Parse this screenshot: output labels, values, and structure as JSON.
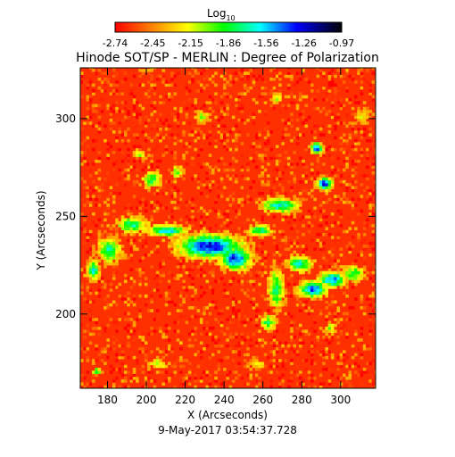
{
  "chart_data": {
    "type": "heatmap",
    "title": "Hinode SOT/SP - MERLIN : Degree of Polarization",
    "subtitle": "9-May-2017 03:54:37.728",
    "xlabel": "X (Arcseconds)",
    "ylabel": "Y (Arcseconds)",
    "xlim": [
      166,
      318
    ],
    "ylim": [
      162,
      326
    ],
    "x_ticks": [
      180,
      200,
      220,
      240,
      260,
      280,
      300
    ],
    "y_ticks": [
      200,
      250,
      300
    ],
    "colorbar": {
      "label_base": "Log",
      "label_sub": "10",
      "range": [
        -2.74,
        -0.97
      ],
      "ticks": [
        "-2.74",
        "-2.45",
        "-2.15",
        "-1.86",
        "-1.56",
        "-1.26",
        "-0.97"
      ],
      "colormap": [
        "#ff0000",
        "#ff8000",
        "#ffff00",
        "#00ff00",
        "#00ffff",
        "#0000ff",
        "#000000"
      ]
    },
    "background_level": -2.6,
    "features": [
      {
        "x": 232,
        "y": 234,
        "rx": 16,
        "ry": 6,
        "level": -1.2
      },
      {
        "x": 245,
        "y": 228,
        "rx": 8,
        "ry": 6,
        "level": -1.3
      },
      {
        "x": 210,
        "y": 242,
        "rx": 10,
        "ry": 3,
        "level": -1.5
      },
      {
        "x": 192,
        "y": 245,
        "rx": 8,
        "ry": 4,
        "level": -1.7
      },
      {
        "x": 180,
        "y": 232,
        "rx": 6,
        "ry": 6,
        "level": -1.7
      },
      {
        "x": 172,
        "y": 222,
        "rx": 3,
        "ry": 5,
        "level": -1.6
      },
      {
        "x": 266,
        "y": 212,
        "rx": 4,
        "ry": 10,
        "level": -1.7
      },
      {
        "x": 262,
        "y": 195,
        "rx": 4,
        "ry": 4,
        "level": -1.8
      },
      {
        "x": 285,
        "y": 212,
        "rx": 7,
        "ry": 4,
        "level": -1.3
      },
      {
        "x": 295,
        "y": 217,
        "rx": 7,
        "ry": 4,
        "level": -1.4
      },
      {
        "x": 278,
        "y": 225,
        "rx": 6,
        "ry": 4,
        "level": -1.6
      },
      {
        "x": 268,
        "y": 255,
        "rx": 9,
        "ry": 4,
        "level": -1.6
      },
      {
        "x": 258,
        "y": 242,
        "rx": 6,
        "ry": 3,
        "level": -1.7
      },
      {
        "x": 291,
        "y": 266,
        "rx": 4,
        "ry": 3,
        "level": -1.2
      },
      {
        "x": 287,
        "y": 284,
        "rx": 3,
        "ry": 3,
        "level": -1.3
      },
      {
        "x": 202,
        "y": 268,
        "rx": 5,
        "ry": 4,
        "level": -1.8
      },
      {
        "x": 215,
        "y": 272,
        "rx": 3,
        "ry": 3,
        "level": -1.9
      },
      {
        "x": 196,
        "y": 281,
        "rx": 3,
        "ry": 2,
        "level": -1.9
      },
      {
        "x": 228,
        "y": 300,
        "rx": 4,
        "ry": 3,
        "level": -2.0
      },
      {
        "x": 266,
        "y": 310,
        "rx": 3,
        "ry": 3,
        "level": -2.0
      },
      {
        "x": 306,
        "y": 220,
        "rx": 6,
        "ry": 4,
        "level": -1.8
      },
      {
        "x": 294,
        "y": 192,
        "rx": 3,
        "ry": 3,
        "level": -2.0
      },
      {
        "x": 174,
        "y": 170,
        "rx": 3,
        "ry": 2,
        "level": -1.9
      },
      {
        "x": 206,
        "y": 174,
        "rx": 6,
        "ry": 3,
        "level": -2.1
      },
      {
        "x": 256,
        "y": 174,
        "rx": 5,
        "ry": 3,
        "level": -2.1
      },
      {
        "x": 310,
        "y": 300,
        "rx": 4,
        "ry": 4,
        "level": -2.1
      }
    ]
  }
}
